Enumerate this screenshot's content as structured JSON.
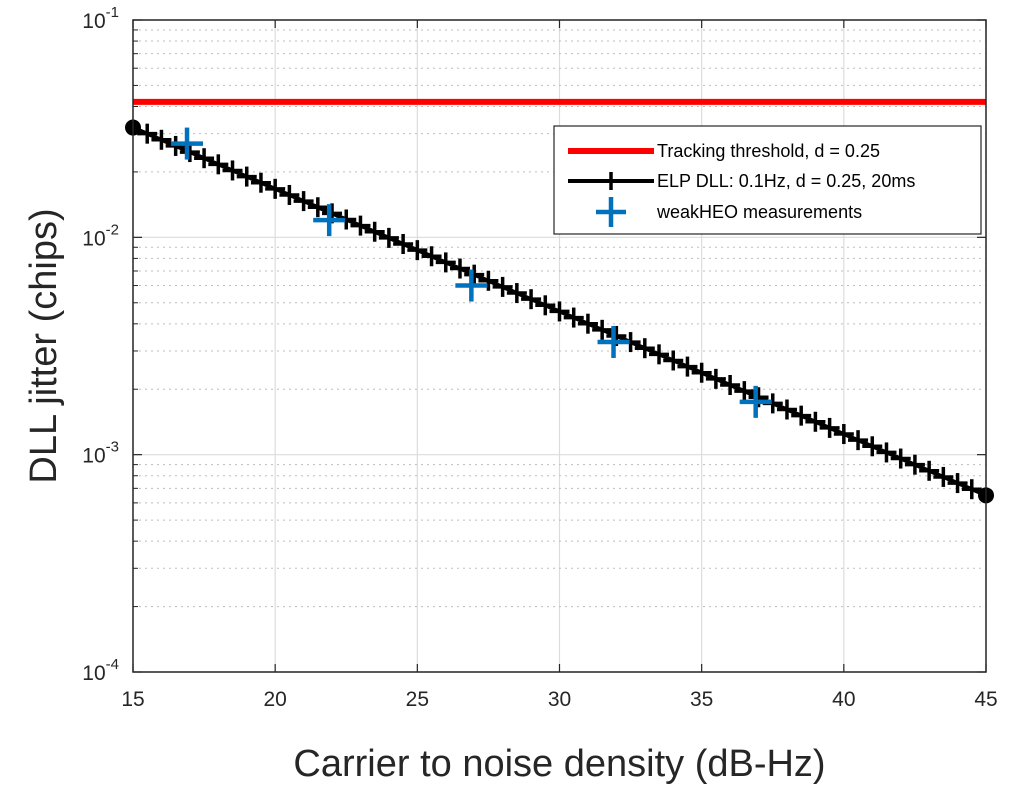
{
  "chart_data": {
    "type": "line",
    "xlabel": "Carrier to noise density (dB-Hz)",
    "ylabel": "DLL jitter (chips)",
    "xlim": [
      15,
      45
    ],
    "ylim": [
      0.0001,
      0.1
    ],
    "yscale": "log",
    "xticks": [
      15,
      20,
      25,
      30,
      35,
      40,
      45
    ],
    "xtick_labels": [
      "15",
      "20",
      "25",
      "30",
      "35",
      "40",
      "45"
    ],
    "yticks": [
      {
        "value": 0.1,
        "base": "10",
        "exp": "-1"
      },
      {
        "value": 0.01,
        "base": "10",
        "exp": "-2"
      },
      {
        "value": 0.001,
        "base": "10",
        "exp": "-3"
      },
      {
        "value": 0.0001,
        "base": "10",
        "exp": "-4"
      }
    ],
    "grid": true,
    "minor_grid": true,
    "legend_position": "top-right",
    "series": [
      {
        "name": "Tracking threshold, d = 0.25",
        "color": "#ff0000",
        "style": "line",
        "x": [
          15,
          45
        ],
        "y": [
          0.042,
          0.042
        ]
      },
      {
        "name": "ELP DLL: 0.1Hz, d = 0.25,  20ms",
        "color": "#000000",
        "style": "line+plus",
        "x_start": 15,
        "x_end": 45,
        "x_step": 0.5,
        "y_at_start": 0.032,
        "y_at_end": 0.00065
      },
      {
        "name": "weakHEO measurements",
        "color": "#0072bd",
        "style": "plus",
        "x": [
          16.9,
          21.9,
          26.9,
          31.9,
          36.9
        ],
        "y": [
          0.027,
          0.012,
          0.006,
          0.0033,
          0.00175
        ]
      }
    ]
  }
}
